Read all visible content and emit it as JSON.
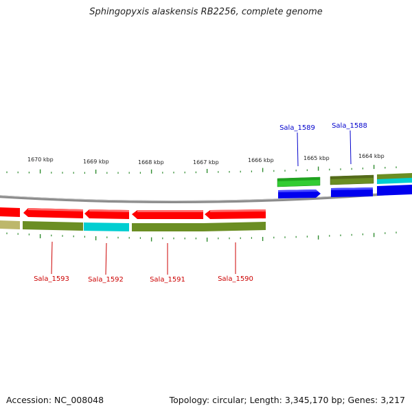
{
  "title": "Sphingopyxis alaskensis RB2256, complete genome",
  "footer": {
    "accession": "Accession: NC_008048",
    "summary": "Topology: circular; Length: 3,345,170 bp; Genes: 3,217"
  },
  "scale": {
    "unit": "kbp",
    "labels": [
      "1670 kbp",
      "1669 kbp",
      "1668 kbp",
      "1667 kbp",
      "1666 kbp",
      "1665 kbp",
      "1664 kbp"
    ]
  },
  "colors": {
    "red_gene": "#ff0000",
    "olive_gene": "#6b8e23",
    "cyan_gene": "#00ced1",
    "blue_gene": "#0000ee",
    "green_gene": "#33cc33",
    "tan_gene": "#bdb76b",
    "backbone": "#8c8c8c",
    "tick": "#2e8b2e",
    "forward_label": "#0000cc",
    "reverse_label": "#cc0000"
  },
  "genes": {
    "forward": [
      "Sala_1589",
      "Sala_1588"
    ],
    "reverse": [
      "Sala_1593",
      "Sala_1592",
      "Sala_1591",
      "Sala_1590"
    ]
  }
}
